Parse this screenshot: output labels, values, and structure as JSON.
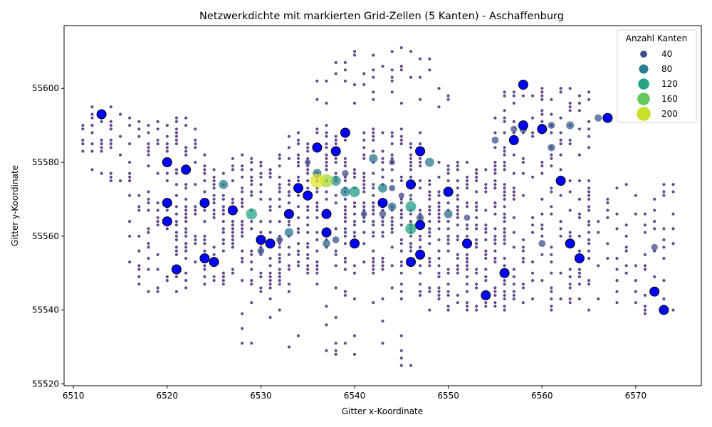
{
  "chart_data": {
    "type": "scatter",
    "title": "Netzwerkdichte mit markierten Grid-Zellen (5 Kanten) - Aschaffenburg",
    "xlabel": "Gitter x-Koordinate",
    "ylabel": "Gitter y-Koordinate",
    "xlim": [
      6509,
      6577
    ],
    "ylim": [
      55519.5,
      55617
    ],
    "xticks": [
      6510,
      6520,
      6530,
      6540,
      6550,
      6560,
      6570
    ],
    "yticks": [
      55520,
      55540,
      55560,
      55580,
      55600
    ],
    "grid": false,
    "legend": {
      "title": "Anzahl Kanten",
      "placement": "top-right",
      "entries": [
        {
          "label": "40",
          "value": 40
        },
        {
          "label": "80",
          "value": 80
        },
        {
          "label": "120",
          "value": 120
        },
        {
          "label": "160",
          "value": 160
        },
        {
          "label": "200",
          "value": 200
        }
      ]
    },
    "colormap": [
      "#482878",
      "#3e4989",
      "#31688e",
      "#26828e",
      "#1f9e89",
      "#35b779",
      "#6ece58",
      "#b5de2b",
      "#fde725"
    ],
    "color_range": [
      5,
      220
    ],
    "highlight": {
      "edges": 5,
      "color": "#0000ff",
      "edge_color": "#000000",
      "points": [
        [
          6513,
          55593
        ],
        [
          6520,
          55580
        ],
        [
          6522,
          55578
        ],
        [
          6520,
          55569
        ],
        [
          6520,
          55564
        ],
        [
          6521,
          55551
        ],
        [
          6524,
          55569
        ],
        [
          6524,
          55554
        ],
        [
          6525,
          55553
        ],
        [
          6527,
          55567
        ],
        [
          6530,
          55559
        ],
        [
          6531,
          55558
        ],
        [
          6533,
          55566
        ],
        [
          6534,
          55573
        ],
        [
          6535,
          55571
        ],
        [
          6536,
          55584
        ],
        [
          6537,
          55566
        ],
        [
          6537,
          55561
        ],
        [
          6538,
          55583
        ],
        [
          6539,
          55588
        ],
        [
          6540,
          55558
        ],
        [
          6543,
          55569
        ],
        [
          6546,
          55574
        ],
        [
          6546,
          55553
        ],
        [
          6547,
          55583
        ],
        [
          6547,
          55563
        ],
        [
          6547,
          55555
        ],
        [
          6550,
          55572
        ],
        [
          6552,
          55558
        ],
        [
          6554,
          55544
        ],
        [
          6556,
          55550
        ],
        [
          6557,
          55586
        ],
        [
          6558,
          55601
        ],
        [
          6558,
          55590
        ],
        [
          6560,
          55589
        ],
        [
          6562,
          55575
        ],
        [
          6563,
          55558
        ],
        [
          6564,
          55554
        ],
        [
          6567,
          55592
        ],
        [
          6572,
          55545
        ],
        [
          6573,
          55540
        ]
      ]
    },
    "dense_points": [
      [
        6536,
        55575,
        210
      ],
      [
        6537,
        55575,
        185
      ],
      [
        6538,
        55575,
        95
      ],
      [
        6540,
        55572,
        110
      ],
      [
        6529,
        55566,
        120
      ],
      [
        6546,
        55568,
        110
      ],
      [
        6546,
        55562,
        120
      ],
      [
        6548,
        55580,
        75
      ],
      [
        6526,
        55574,
        80
      ],
      [
        6536,
        55577,
        70
      ],
      [
        6539,
        55572,
        85
      ],
      [
        6542,
        55581,
        70
      ],
      [
        6543,
        55573,
        80
      ],
      [
        6544,
        55568,
        60
      ],
      [
        6550,
        55566,
        65
      ],
      [
        6563,
        55590,
        55
      ],
      [
        6558,
        55589,
        50
      ],
      [
        6555,
        55586,
        40
      ],
      [
        6533,
        55561,
        70
      ],
      [
        6530,
        55556,
        40
      ],
      [
        6537,
        55558,
        50
      ],
      [
        6543,
        55566,
        40
      ],
      [
        6547,
        55565,
        45
      ],
      [
        6566,
        55592,
        45
      ],
      [
        6561,
        55590,
        40
      ],
      [
        6538,
        55559,
        40
      ],
      [
        6561,
        55584,
        45
      ],
      [
        6560,
        55558,
        40
      ],
      [
        6572,
        55557,
        35
      ],
      [
        6532,
        55559,
        35
      ],
      [
        6541,
        55566,
        30
      ],
      [
        6544,
        55573,
        30
      ],
      [
        6539,
        55577,
        35
      ],
      [
        6535,
        55580,
        25
      ],
      [
        6552,
        55565,
        30
      ],
      [
        6544,
        55580,
        25
      ],
      [
        6557,
        55589,
        35
      ],
      [
        6545,
        55571,
        25
      ]
    ],
    "background_point_count": 1500
  }
}
